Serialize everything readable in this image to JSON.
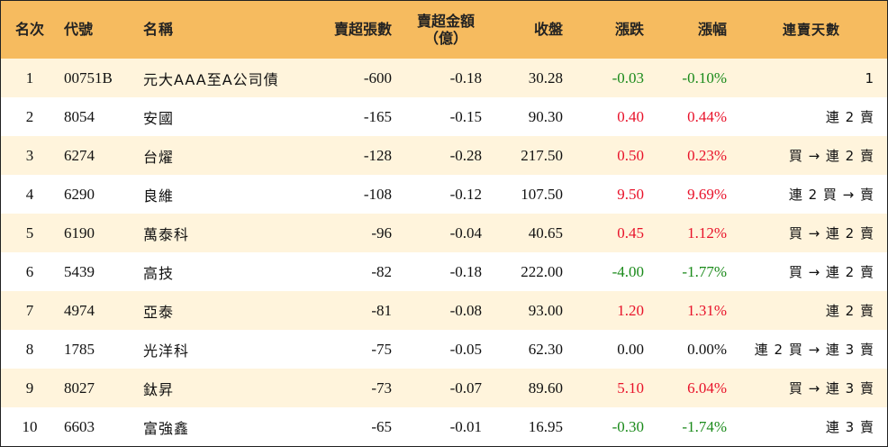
{
  "header": {
    "rank": "名次",
    "code": "代號",
    "name": "名稱",
    "net_sell_shares": "賣超張數",
    "net_sell_amount_line1": "賣超金額",
    "net_sell_amount_line2": "（億）",
    "close": "收盤",
    "change": "漲跌",
    "change_pct": "漲幅",
    "consecutive": "連賣天數"
  },
  "colors": {
    "header_bg": "#f6bb5f",
    "row_odd_bg": "#fff4dc",
    "row_even_bg": "#ffffff",
    "up": "#e8122a",
    "down": "#1a8a1a"
  },
  "rows": [
    {
      "rank": "1",
      "code": "00751B",
      "name": "元大AAA至A公司債",
      "shares": "-600",
      "amount": "-0.18",
      "close": "30.28",
      "change": "-0.03",
      "pct": "-0.10%",
      "trend": "down",
      "days": "1"
    },
    {
      "rank": "2",
      "code": "8054",
      "name": "安國",
      "shares": "-165",
      "amount": "-0.15",
      "close": "90.30",
      "change": "0.40",
      "pct": "0.44%",
      "trend": "up",
      "days": "連 2 賣"
    },
    {
      "rank": "3",
      "code": "6274",
      "name": "台燿",
      "shares": "-128",
      "amount": "-0.28",
      "close": "217.50",
      "change": "0.50",
      "pct": "0.23%",
      "trend": "up",
      "days": "買 → 連 2 賣"
    },
    {
      "rank": "4",
      "code": "6290",
      "name": "良維",
      "shares": "-108",
      "amount": "-0.12",
      "close": "107.50",
      "change": "9.50",
      "pct": "9.69%",
      "trend": "up",
      "days": "連 2 買 → 賣"
    },
    {
      "rank": "5",
      "code": "6190",
      "name": "萬泰科",
      "shares": "-96",
      "amount": "-0.04",
      "close": "40.65",
      "change": "0.45",
      "pct": "1.12%",
      "trend": "up",
      "days": "買 → 連 2 賣"
    },
    {
      "rank": "6",
      "code": "5439",
      "name": "高技",
      "shares": "-82",
      "amount": "-0.18",
      "close": "222.00",
      "change": "-4.00",
      "pct": "-1.77%",
      "trend": "down",
      "days": "買 → 連 2 賣"
    },
    {
      "rank": "7",
      "code": "4974",
      "name": "亞泰",
      "shares": "-81",
      "amount": "-0.08",
      "close": "93.00",
      "change": "1.20",
      "pct": "1.31%",
      "trend": "up",
      "days": "連 2 賣"
    },
    {
      "rank": "8",
      "code": "1785",
      "name": "光洋科",
      "shares": "-75",
      "amount": "-0.05",
      "close": "62.30",
      "change": "0.00",
      "pct": "0.00%",
      "trend": "flat",
      "days": "連 2 買 → 連 3 賣"
    },
    {
      "rank": "9",
      "code": "8027",
      "name": "鈦昇",
      "shares": "-73",
      "amount": "-0.07",
      "close": "89.60",
      "change": "5.10",
      "pct": "6.04%",
      "trend": "up",
      "days": "買 → 連 3 賣"
    },
    {
      "rank": "10",
      "code": "6603",
      "name": "富強鑫",
      "shares": "-65",
      "amount": "-0.01",
      "close": "16.95",
      "change": "-0.30",
      "pct": "-1.74%",
      "trend": "down",
      "days": "連 3 賣"
    }
  ]
}
